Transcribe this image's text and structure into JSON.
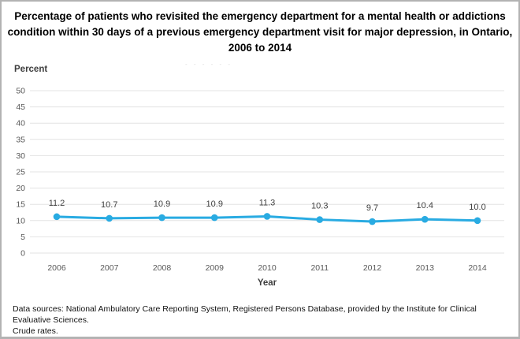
{
  "chart_data": {
    "type": "line",
    "title": "Percentage of patients who revisited the emergency department for a mental health or addictions condition within 30 days of a previous emergency department visit for major depression, in Ontario, 2006 to 2014",
    "title_lines": [
      "Percentage of patients who revisited the emergency department for a mental health or addictions",
      "condition within 30 days of a previous emergency department visit for major depression, in Ontario,",
      "2006 to 2014"
    ],
    "ylabel": "Percent",
    "xlabel": "Year",
    "categories": [
      "2006",
      "2007",
      "2008",
      "2009",
      "2010",
      "2011",
      "2012",
      "2013",
      "2014"
    ],
    "values": [
      11.2,
      10.7,
      10.9,
      10.9,
      11.3,
      10.3,
      9.7,
      10.4,
      10.0
    ],
    "data_labels": [
      "11.2",
      "10.7",
      "10.9",
      "10.9",
      "11.3",
      "10.3",
      "9.7",
      "10.4",
      "10.0"
    ],
    "ylim": [
      0,
      50
    ],
    "ytick_step": 5,
    "grid": true,
    "legend": "none",
    "line_color": "#29abe2",
    "grid_color": "#e3e3e3",
    "tick_color": "#595959",
    "label_color": "#404040"
  },
  "footer": {
    "lines": [
      "Data sources: National Ambulatory Care Reporting System, Registered Persons Database, provided by the Institute for Clinical Evaluative Sciences.",
      "Crude rates."
    ]
  },
  "artifact": {
    "dashes": "- - - - -    -"
  }
}
